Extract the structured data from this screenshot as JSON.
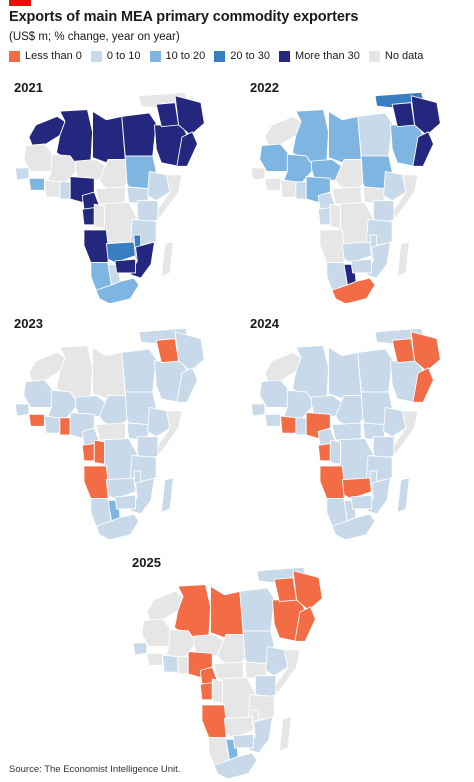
{
  "title": "Exports of main MEA primary commodity exporters",
  "subtitle": "(US$ m; % change, year on year)",
  "legend": [
    {
      "label": "Less than 0",
      "color": "#f26c45"
    },
    {
      "label": "0 to 10",
      "color": "#c8d9ea"
    },
    {
      "label": "10 to 20",
      "color": "#7fb6e1"
    },
    {
      "label": "20 to 30",
      "color": "#3a7ec2"
    },
    {
      "label": "More than 30",
      "color": "#23287e"
    },
    {
      "label": "No data",
      "color": "#e6e6e6"
    }
  ],
  "border_color": "#ffffff",
  "maps": [
    {
      "year": "2021",
      "regions": {
        "north": {
          "morocco": "More than 30",
          "algeria": "More than 30",
          "libya": "More than 30",
          "egypt": "More than 30"
        },
        "mideast": {
          "turkey": "No data",
          "saudi_arabia": "More than 30",
          "iran": "More than 30",
          "iraq": "More than 30",
          "gulf": "More than 30"
        },
        "west": {
          "mauritania": "No data",
          "mali": "No data",
          "niger": "No data",
          "senegal": "0 to 10",
          "guinea": "10 to 20",
          "cote_divoire": "No data",
          "ghana": "0 to 10",
          "nigeria": "More than 30"
        },
        "central": {
          "chad": "No data",
          "sudan": "10 to 20",
          "south_sudan": "0 to 10",
          "car": "No data",
          "cameroon": "More than 30",
          "gabon": "More than 30",
          "congo": "No data",
          "drc": "No data"
        },
        "east": {
          "ethiopia": "0 to 10",
          "somalia": "No data",
          "kenya": "0 to 10",
          "tanzania": "0 to 10"
        },
        "south": {
          "angola": "More than 30",
          "zambia": "20 to 30",
          "malawi": "20 to 30",
          "mozambique": "More than 30",
          "namibia": "10 to 20",
          "botswana": "0 to 10",
          "zimbabwe": "More than 30",
          "south_africa": "10 to 20",
          "madagascar": "No data"
        }
      }
    },
    {
      "year": "2022",
      "regions": {
        "north": {
          "morocco": "No data",
          "algeria": "10 to 20",
          "libya": "10 to 20",
          "egypt": "0 to 10"
        },
        "mideast": {
          "turkey": "20 to 30",
          "saudi_arabia": "10 to 20",
          "iran": "More than 30",
          "iraq": "More than 30",
          "gulf": "More than 30"
        },
        "west": {
          "mauritania": "10 to 20",
          "mali": "10 to 20",
          "niger": "10 to 20",
          "senegal": "No data",
          "guinea": "No data",
          "cote_divoire": "No data",
          "ghana": "0 to 10",
          "nigeria": "10 to 20"
        },
        "central": {
          "chad": "No data",
          "sudan": "10 to 20",
          "south_sudan": "No data",
          "car": "No data",
          "cameroon": "0 to 10",
          "gabon": "0 to 10",
          "congo": "No data",
          "drc": "No data"
        },
        "east": {
          "ethiopia": "0 to 10",
          "somalia": "No data",
          "kenya": "0 to 10",
          "tanzania": "0 to 10"
        },
        "south": {
          "angola": "No data",
          "zambia": "0 to 10",
          "malawi": "0 to 10",
          "mozambique": "0 to 10",
          "namibia": "0 to 10",
          "botswana": "More than 30",
          "zimbabwe": "0 to 10",
          "south_africa": "Less than 0",
          "madagascar": "No data"
        }
      }
    },
    {
      "year": "2023",
      "regions": {
        "north": {
          "morocco": "No data",
          "algeria": "No data",
          "libya": "No data",
          "egypt": "0 to 10"
        },
        "mideast": {
          "turkey": "0 to 10",
          "saudi_arabia": "0 to 10",
          "iran": "0 to 10",
          "iraq": "Less than 0",
          "gulf": "0 to 10"
        },
        "west": {
          "mauritania": "0 to 10",
          "mali": "0 to 10",
          "niger": "0 to 10",
          "senegal": "0 to 10",
          "guinea": "Less than 0",
          "cote_divoire": "0 to 10",
          "ghana": "Less than 0",
          "nigeria": "0 to 10"
        },
        "central": {
          "chad": "0 to 10",
          "sudan": "0 to 10",
          "south_sudan": "0 to 10",
          "car": "No data",
          "cameroon": "0 to 10",
          "gabon": "Less than 0",
          "congo": "Less than 0",
          "drc": "0 to 10"
        },
        "east": {
          "ethiopia": "0 to 10",
          "somalia": "No data",
          "kenya": "0 to 10",
          "tanzania": "0 to 10"
        },
        "south": {
          "angola": "Less than 0",
          "zambia": "0 to 10",
          "malawi": "0 to 10",
          "mozambique": "0 to 10",
          "namibia": "0 to 10",
          "botswana": "10 to 20",
          "zimbabwe": "0 to 10",
          "south_africa": "0 to 10",
          "madagascar": "0 to 10"
        }
      }
    },
    {
      "year": "2024",
      "regions": {
        "north": {
          "morocco": "No data",
          "algeria": "0 to 10",
          "libya": "0 to 10",
          "egypt": "0 to 10"
        },
        "mideast": {
          "turkey": "0 to 10",
          "saudi_arabia": "0 to 10",
          "iran": "Less than 0",
          "iraq": "Less than 0",
          "gulf": "Less than 0"
        },
        "west": {
          "mauritania": "0 to 10",
          "mali": "0 to 10",
          "niger": "0 to 10",
          "senegal": "0 to 10",
          "guinea": "0 to 10",
          "cote_divoire": "Less than 0",
          "ghana": "0 to 10",
          "nigeria": "Less than 0"
        },
        "central": {
          "chad": "0 to 10",
          "sudan": "0 to 10",
          "south_sudan": "0 to 10",
          "car": "0 to 10",
          "cameroon": "0 to 10",
          "gabon": "Less than 0",
          "congo": "0 to 10",
          "drc": "0 to 10"
        },
        "east": {
          "ethiopia": "0 to 10",
          "somalia": "No data",
          "kenya": "0 to 10",
          "tanzania": "0 to 10"
        },
        "south": {
          "angola": "Less than 0",
          "zambia": "Less than 0",
          "malawi": "0 to 10",
          "mozambique": "0 to 10",
          "namibia": "0 to 10",
          "botswana": "0 to 10",
          "zimbabwe": "0 to 10",
          "south_africa": "0 to 10",
          "madagascar": "0 to 10"
        }
      }
    },
    {
      "year": "2025",
      "regions": {
        "north": {
          "morocco": "No data",
          "algeria": "Less than 0",
          "libya": "Less than 0",
          "egypt": "0 to 10"
        },
        "mideast": {
          "turkey": "0 to 10",
          "saudi_arabia": "Less than 0",
          "iran": "Less than 0",
          "iraq": "Less than 0",
          "gulf": "Less than 0"
        },
        "west": {
          "mauritania": "No data",
          "mali": "No data",
          "niger": "No data",
          "senegal": "0 to 10",
          "guinea": "No data",
          "cote_divoire": "0 to 10",
          "ghana": "No data",
          "nigeria": "Less than 0"
        },
        "central": {
          "chad": "No data",
          "sudan": "0 to 10",
          "south_sudan": "No data",
          "car": "No data",
          "cameroon": "Less than 0",
          "gabon": "Less than 0",
          "congo": "No data",
          "drc": "No data"
        },
        "east": {
          "ethiopia": "0 to 10",
          "somalia": "No data",
          "kenya": "0 to 10",
          "tanzania": "No data"
        },
        "south": {
          "angola": "Less than 0",
          "zambia": "No data",
          "malawi": "No data",
          "mozambique": "0 to 10",
          "namibia": "No data",
          "botswana": "10 to 20",
          "zimbabwe": "0 to 10",
          "south_africa": "0 to 10",
          "madagascar": "No data"
        }
      }
    }
  ],
  "source": "Source: The Economist Intelligence Unit."
}
